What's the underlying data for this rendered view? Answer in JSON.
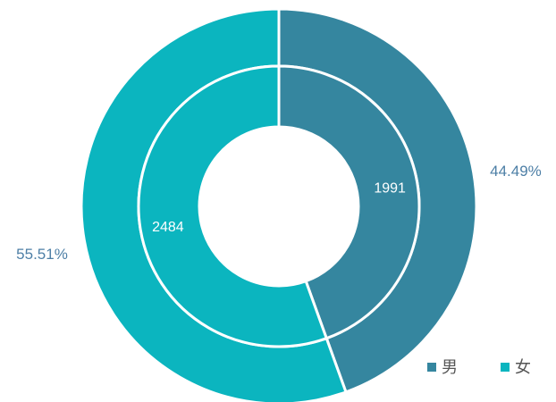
{
  "chart_data": {
    "type": "donut",
    "categories": [
      "男",
      "女"
    ],
    "colors": [
      "#35869f",
      "#0bb5bf"
    ],
    "series": [
      {
        "values": [
          44.49,
          55.51
        ],
        "value_labels": [
          "44.49%",
          "55.51%"
        ]
      },
      {
        "values": [
          1991,
          2484
        ]
      }
    ],
    "legend": "bottom-right"
  }
}
